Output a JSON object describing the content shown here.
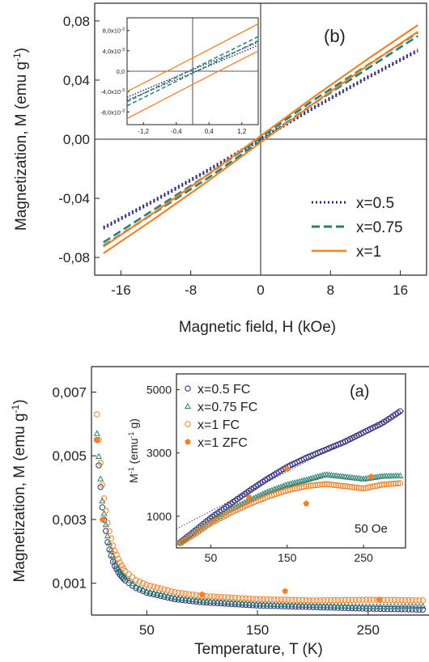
{
  "colors": {
    "x05": "#2e2a78",
    "x075": "#2a7f72",
    "x1": "#f0832a",
    "axis": "#222222"
  },
  "chart_data": [
    {
      "type": "line",
      "panel_label": "(b)",
      "xlabel": "Magnetic field, H (kOe)",
      "ylabel": "Magnetization, M (emu g",
      "ylabel_sup": "-1",
      "ylabel_close": ")",
      "xlim": [
        -19,
        19
      ],
      "ylim": [
        -0.092,
        0.092
      ],
      "xticks": [
        -16,
        -8,
        0,
        8,
        16
      ],
      "xtick_labels": [
        "-16",
        "-8",
        "0",
        "8",
        "16"
      ],
      "yticks": [
        -0.08,
        -0.04,
        0,
        0.04,
        0.08
      ],
      "ytick_labels": [
        "-0,08",
        "-0,04",
        "0,00",
        "0,04",
        "0,08"
      ],
      "legend_position": "bottom-right",
      "series": [
        {
          "name": "x=0.5",
          "style": "dotted",
          "color_key": "x05",
          "x": [
            -18,
            -12,
            -6,
            0,
            6,
            12,
            18
          ],
          "y": [
            -0.06,
            -0.041,
            -0.021,
            0.0,
            0.021,
            0.041,
            0.06
          ]
        },
        {
          "name": "x=0.75",
          "style": "dashed",
          "color_key": "x075",
          "x": [
            -18,
            -12,
            -6,
            0,
            6,
            12,
            18
          ],
          "y": [
            -0.071,
            -0.048,
            -0.025,
            0.0,
            0.025,
            0.048,
            0.071
          ]
        },
        {
          "name": "x=1",
          "style": "solid",
          "color_key": "x1",
          "x": [
            -18,
            -12,
            -6,
            0,
            6,
            12,
            18
          ],
          "y": [
            -0.075,
            -0.051,
            -0.026,
            0.0,
            0.026,
            0.051,
            0.075
          ]
        }
      ],
      "inset": {
        "type": "line",
        "xlim": [
          -1.6,
          1.6
        ],
        "ylim": [
          -0.0105,
          0.0105
        ],
        "xticks": [
          -1.2,
          -0.4,
          0.4,
          1.2
        ],
        "xtick_labels": [
          "-1,2",
          "-0,4",
          "0,4",
          "1,2"
        ],
        "yticks": [
          -0.008,
          -0.004,
          0.0,
          0.004,
          0.008
        ],
        "ytick_labels": [
          "-8,0x10",
          "-4,0x10",
          "0,0",
          "4,0x10",
          "8,0x10"
        ],
        "ytick_sups": [
          "-3",
          "-3",
          "",
          "-3",
          "-3"
        ],
        "series": [
          {
            "name": "x=0.5",
            "style": "dotted",
            "color_key": "x05",
            "loops": [
              {
                "x": [
                  -1.6,
                  0,
                  1.6
                ],
                "y": [
                  -0.0051,
                  0.0003,
                  0.0057
                ]
              },
              {
                "x": [
                  -1.6,
                  0,
                  1.6
                ],
                "y": [
                  -0.0057,
                  -0.0003,
                  0.0051
                ]
              }
            ]
          },
          {
            "name": "x=0.75",
            "style": "dashed",
            "color_key": "x075",
            "loops": [
              {
                "x": [
                  -1.6,
                  0,
                  1.6
                ],
                "y": [
                  -0.006,
                  0.0004,
                  0.0068
                ]
              },
              {
                "x": [
                  -1.6,
                  0,
                  1.6
                ],
                "y": [
                  -0.0068,
                  -0.0004,
                  0.006
                ]
              }
            ]
          },
          {
            "name": "x=1",
            "style": "solid",
            "color_key": "x1",
            "loops": [
              {
                "x": [
                  -1.6,
                  0,
                  1.6
                ],
                "y": [
                  -0.004,
                  0.0026,
                  0.0093
                ]
              },
              {
                "x": [
                  -1.6,
                  0,
                  1.6
                ],
                "y": [
                  -0.0093,
                  -0.0026,
                  0.004
                ]
              }
            ]
          }
        ]
      }
    },
    {
      "type": "scatter",
      "panel_label": "(a)",
      "xlabel": "Temperature, T (K)",
      "ylabel": "Magnetization,  M (emu g",
      "ylabel_sup": "-1",
      "ylabel_close": ")",
      "xlim": [
        0,
        305
      ],
      "ylim": [
        0,
        0.0078
      ],
      "xticks": [
        50,
        150,
        250
      ],
      "xtick_labels": [
        "50",
        "150",
        "250"
      ],
      "yticks": [
        0.001,
        0.003,
        0.005,
        0.007
      ],
      "ytick_labels": [
        "0,001",
        "0,003",
        "0,005",
        "0,007"
      ],
      "series": [
        {
          "name": "x=0.5 FC",
          "marker": "open-circle",
          "color_key": "x05",
          "x": [
            5,
            7,
            10,
            15,
            20,
            25,
            30,
            40,
            50,
            75,
            100,
            150,
            200,
            250,
            300
          ],
          "y": [
            0.0055,
            0.0045,
            0.0033,
            0.0022,
            0.0016,
            0.0013,
            0.0011,
            0.00085,
            0.0007,
            0.0005,
            0.0004,
            0.0003,
            0.00025,
            0.0002,
            0.00017
          ]
        },
        {
          "name": "x=0.75 FC",
          "marker": "open-triangle",
          "color_key": "x075",
          "x": [
            5,
            7,
            10,
            15,
            20,
            25,
            30,
            40,
            50,
            75,
            100,
            150,
            200,
            250,
            300
          ],
          "y": [
            0.0057,
            0.0048,
            0.0035,
            0.0024,
            0.0018,
            0.0014,
            0.0012,
            0.0009,
            0.00075,
            0.00055,
            0.00045,
            0.00035,
            0.0003,
            0.00027,
            0.00028
          ]
        },
        {
          "name": "x=1 FC",
          "marker": "open-circle",
          "color_key": "x1",
          "x": [
            5,
            7,
            10,
            15,
            20,
            25,
            30,
            40,
            50,
            75,
            100,
            150,
            200,
            250,
            300
          ],
          "y": [
            0.0063,
            0.0053,
            0.004,
            0.0028,
            0.0021,
            0.0017,
            0.0014,
            0.0011,
            0.00095,
            0.00072,
            0.0006,
            0.0005,
            0.00046,
            0.00048,
            0.00046
          ]
        },
        {
          "name": "x=1 ZFC",
          "marker": "filled-pentagon",
          "color_key": "x1",
          "x": [
            5,
            10,
            100,
            175,
            260
          ],
          "y": [
            0.0055,
            0.003,
            0.00065,
            0.00075,
            0.00048
          ]
        }
      ],
      "inset": {
        "type": "scatter",
        "ylabel": "M",
        "ylabel_sup1": "-1",
        "ylabel_mid": " (emu",
        "ylabel_sup2": "-1",
        "ylabel_close": " g)",
        "annotation": "50 Oe",
        "xlim": [
          5,
          305
        ],
        "ylim": [
          0,
          5500
        ],
        "xticks": [
          50,
          150,
          250
        ],
        "xtick_labels": [
          "50",
          "150",
          "250"
        ],
        "yticks": [
          1000,
          3000,
          5000
        ],
        "ytick_labels": [
          "1000",
          "3000",
          "5000"
        ],
        "legend_position": "top-left",
        "fit_line": {
          "x": [
            5,
            305
          ],
          "y": [
            600,
            4350
          ]
        },
        "series": [
          {
            "name": "x=0.5 FC",
            "marker": "open-circle",
            "color_key": "x05",
            "x": [
              10,
              30,
              50,
              75,
              100,
              125,
              150,
              175,
              200,
              225,
              250,
              275,
              300
            ],
            "y": [
              180,
              560,
              950,
              1380,
              1800,
              2200,
              2560,
              2850,
              3100,
              3350,
              3650,
              3950,
              4350
            ]
          },
          {
            "name": "x=0.75 FC",
            "marker": "open-triangle",
            "color_key": "x075",
            "x": [
              10,
              30,
              50,
              75,
              100,
              125,
              150,
              175,
              200,
              225,
              250,
              275,
              300
            ],
            "y": [
              160,
              500,
              850,
              1200,
              1500,
              1780,
              2000,
              2150,
              2320,
              2250,
              2180,
              2270,
              2280
            ]
          },
          {
            "name": "x=1 FC",
            "marker": "open-circle",
            "color_key": "x1",
            "x": [
              10,
              30,
              50,
              75,
              100,
              125,
              150,
              175,
              200,
              225,
              250,
              275,
              300
            ],
            "y": [
              150,
              450,
              780,
              1100,
              1380,
              1620,
              1820,
              1950,
              2020,
              1950,
              1880,
              2000,
              2050
            ]
          },
          {
            "name": "x=1 ZFC",
            "marker": "filled-pentagon",
            "color_key": "x1",
            "x": [
              100,
              150,
              175,
              260
            ],
            "y": [
              1600,
              2500,
              1400,
              2250
            ]
          }
        ]
      }
    }
  ]
}
